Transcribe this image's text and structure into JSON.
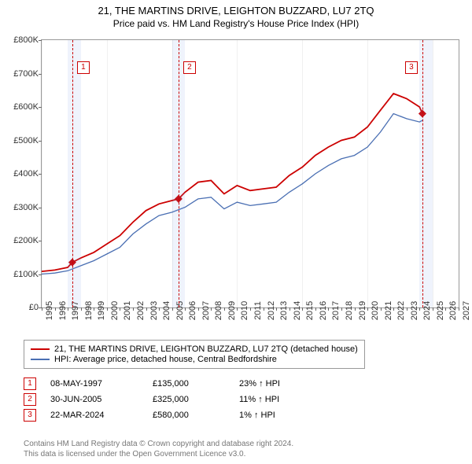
{
  "title": "21, THE MARTINS DRIVE, LEIGHTON BUZZARD, LU7 2TQ",
  "subtitle": "Price paid vs. HM Land Registry's House Price Index (HPI)",
  "chart": {
    "type": "line",
    "background_color": "#ffffff",
    "border_color": "#999999",
    "xlim": [
      1995,
      2027
    ],
    "ylim": [
      0,
      800000
    ],
    "y_ticks": [
      0,
      100000,
      200000,
      300000,
      400000,
      500000,
      600000,
      700000,
      800000
    ],
    "y_tick_labels": [
      "£0",
      "£100K",
      "£200K",
      "£300K",
      "£400K",
      "£500K",
      "£600K",
      "£700K",
      "£800K"
    ],
    "x_ticks": [
      1995,
      1996,
      1997,
      1998,
      1999,
      2000,
      2001,
      2002,
      2003,
      2004,
      2005,
      2006,
      2007,
      2008,
      2009,
      2010,
      2011,
      2012,
      2013,
      2014,
      2015,
      2016,
      2017,
      2018,
      2019,
      2020,
      2021,
      2022,
      2023,
      2024,
      2025,
      2026,
      2027
    ],
    "x_gridlines": [
      1995,
      2000,
      2005,
      2010,
      2015,
      2020,
      2025
    ],
    "bands": [
      {
        "from": 1997.0,
        "to": 1998.0,
        "color": "rgba(120,160,230,0.12)"
      },
      {
        "from": 2005.0,
        "to": 2006.0,
        "color": "rgba(120,160,230,0.12)"
      },
      {
        "from": 2024.0,
        "to": 2025.0,
        "color": "rgba(120,160,230,0.12)"
      }
    ],
    "y_label_fontsize": 11,
    "x_label_fontsize": 11,
    "series": [
      {
        "name": "property",
        "label": "21, THE MARTINS DRIVE, LEIGHTON BUZZARD, LU7 2TQ (detached house)",
        "color": "#cc0000",
        "width": 1.8,
        "x": [
          1995,
          1996,
          1997,
          1997.35,
          1998,
          1999,
          2000,
          2001,
          2002,
          2003,
          2004,
          2005,
          2005.5,
          2006,
          2007,
          2008,
          2009,
          2010,
          2011,
          2012,
          2013,
          2014,
          2015,
          2016,
          2017,
          2018,
          2019,
          2020,
          2021,
          2022,
          2023,
          2024,
          2024.22
        ],
        "y": [
          108000,
          112000,
          120000,
          135000,
          148000,
          165000,
          190000,
          215000,
          255000,
          290000,
          310000,
          320000,
          325000,
          345000,
          375000,
          380000,
          340000,
          365000,
          350000,
          355000,
          360000,
          395000,
          420000,
          455000,
          480000,
          500000,
          510000,
          540000,
          590000,
          640000,
          625000,
          600000,
          580000
        ]
      },
      {
        "name": "hpi",
        "label": "HPI: Average price, detached house, Central Bedfordshire",
        "color": "#4a6fb3",
        "width": 1.3,
        "x": [
          1995,
          1996,
          1997,
          1998,
          1999,
          2000,
          2001,
          2002,
          2003,
          2004,
          2005,
          2006,
          2007,
          2008,
          2009,
          2010,
          2011,
          2012,
          2013,
          2014,
          2015,
          2016,
          2017,
          2018,
          2019,
          2020,
          2021,
          2022,
          2023,
          2024,
          2024.22
        ],
        "y": [
          100000,
          103000,
          110000,
          125000,
          140000,
          160000,
          180000,
          220000,
          250000,
          275000,
          285000,
          300000,
          325000,
          330000,
          295000,
          315000,
          305000,
          310000,
          315000,
          345000,
          370000,
          400000,
          425000,
          445000,
          455000,
          480000,
          525000,
          580000,
          565000,
          555000,
          560000
        ]
      }
    ],
    "markers": [
      {
        "x": 1997.35,
        "y": 135000,
        "color": "#cc0000",
        "size": 5
      },
      {
        "x": 2005.5,
        "y": 325000,
        "color": "#cc0000",
        "size": 5
      },
      {
        "x": 2024.22,
        "y": 580000,
        "color": "#cc0000",
        "size": 5
      }
    ],
    "event_lines": [
      {
        "x": 1997.35,
        "color": "#cc0000",
        "label": "1",
        "label_y": 0.92
      },
      {
        "x": 2005.5,
        "color": "#cc0000",
        "label": "2",
        "label_y": 0.92
      },
      {
        "x": 2024.22,
        "color": "#cc0000",
        "label": "3",
        "label_y": 0.92
      }
    ]
  },
  "legend": {
    "items": [
      {
        "color": "#cc0000",
        "label": "21, THE MARTINS DRIVE, LEIGHTON BUZZARD, LU7 2TQ (detached house)"
      },
      {
        "color": "#4a6fb3",
        "label": "HPI: Average price, detached house, Central Bedfordshire"
      }
    ]
  },
  "events": [
    {
      "n": "1",
      "date": "08-MAY-1997",
      "price": "£135,000",
      "delta": "23% ↑ HPI"
    },
    {
      "n": "2",
      "date": "30-JUN-2005",
      "price": "£325,000",
      "delta": "11% ↑ HPI"
    },
    {
      "n": "3",
      "date": "22-MAR-2024",
      "price": "£580,000",
      "delta": "1% ↑ HPI"
    }
  ],
  "footer": {
    "line1": "Contains HM Land Registry data © Crown copyright and database right 2024.",
    "line2": "This data is licensed under the Open Government Licence v3.0."
  }
}
